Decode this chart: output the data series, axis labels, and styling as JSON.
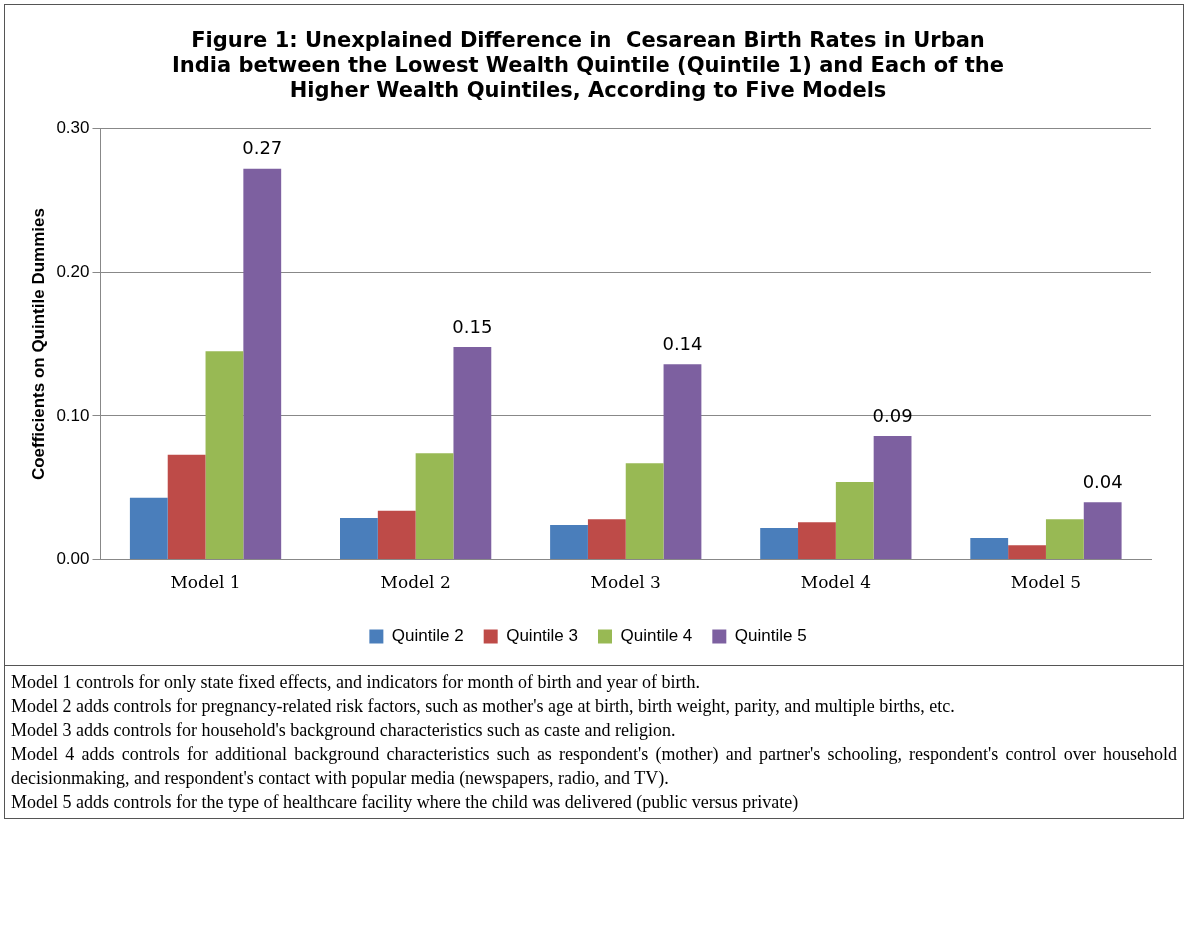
{
  "chart_data": {
    "type": "bar",
    "title": "Figure 1: Unexplained Difference in  Cesarean Birth Rates in Urban India between the Lowest Wealth Quintile (Quintile 1) and Each of the Higher Wealth Quintiles, According to Five Models",
    "ylabel": "Coefficients on Quintile Dummies",
    "categories": [
      "Model 1",
      "Model 2",
      "Model 3",
      "Model 4",
      "Model 5"
    ],
    "series": [
      {
        "name": "Quintile 2",
        "color": "#4a7ebb",
        "values": [
          0.043,
          0.029,
          0.024,
          0.022,
          0.015
        ]
      },
      {
        "name": "Quintile 3",
        "color": "#be4b48",
        "values": [
          0.073,
          0.034,
          0.028,
          0.026,
          0.01
        ]
      },
      {
        "name": "Quintile 4",
        "color": "#98b954",
        "values": [
          0.145,
          0.074,
          0.067,
          0.054,
          0.028
        ]
      },
      {
        "name": "Quintile 5",
        "color": "#7d60a0",
        "values": [
          0.272,
          0.148,
          0.136,
          0.086,
          0.04
        ],
        "value_labels": [
          "0.27",
          "0.15",
          "0.14",
          "0.09",
          "0.04"
        ]
      }
    ],
    "ylim": [
      0,
      0.3
    ],
    "yticks": [
      {
        "value": 0,
        "label": "0.00"
      },
      {
        "value": 0.1,
        "label": "0.10"
      },
      {
        "value": 0.2,
        "label": "0.20"
      },
      {
        "value": 0.3,
        "label": "0.30"
      }
    ],
    "grid": "y",
    "legend": "bottom",
    "annotations": [
      "Model 1 controls for only state fixed effects, and indicators for month of birth and year of birth.",
      "Model 2 adds controls for pregnancy-related risk factors, such as mother's age at birth, birth weight, parity, and multiple births, etc.",
      "Model 3 adds controls for household's background characteristics such as caste and religion.",
      "Model 4 adds controls for additional background characteristics such as respondent's (mother) and partner's schooling, respondent's control over household decisionmaking, and respondent's  contact with popular media (newspapers, radio, and TV).",
      "Model 5 adds controls for the type of healthcare facility where the child was delivered (public versus private)"
    ]
  }
}
